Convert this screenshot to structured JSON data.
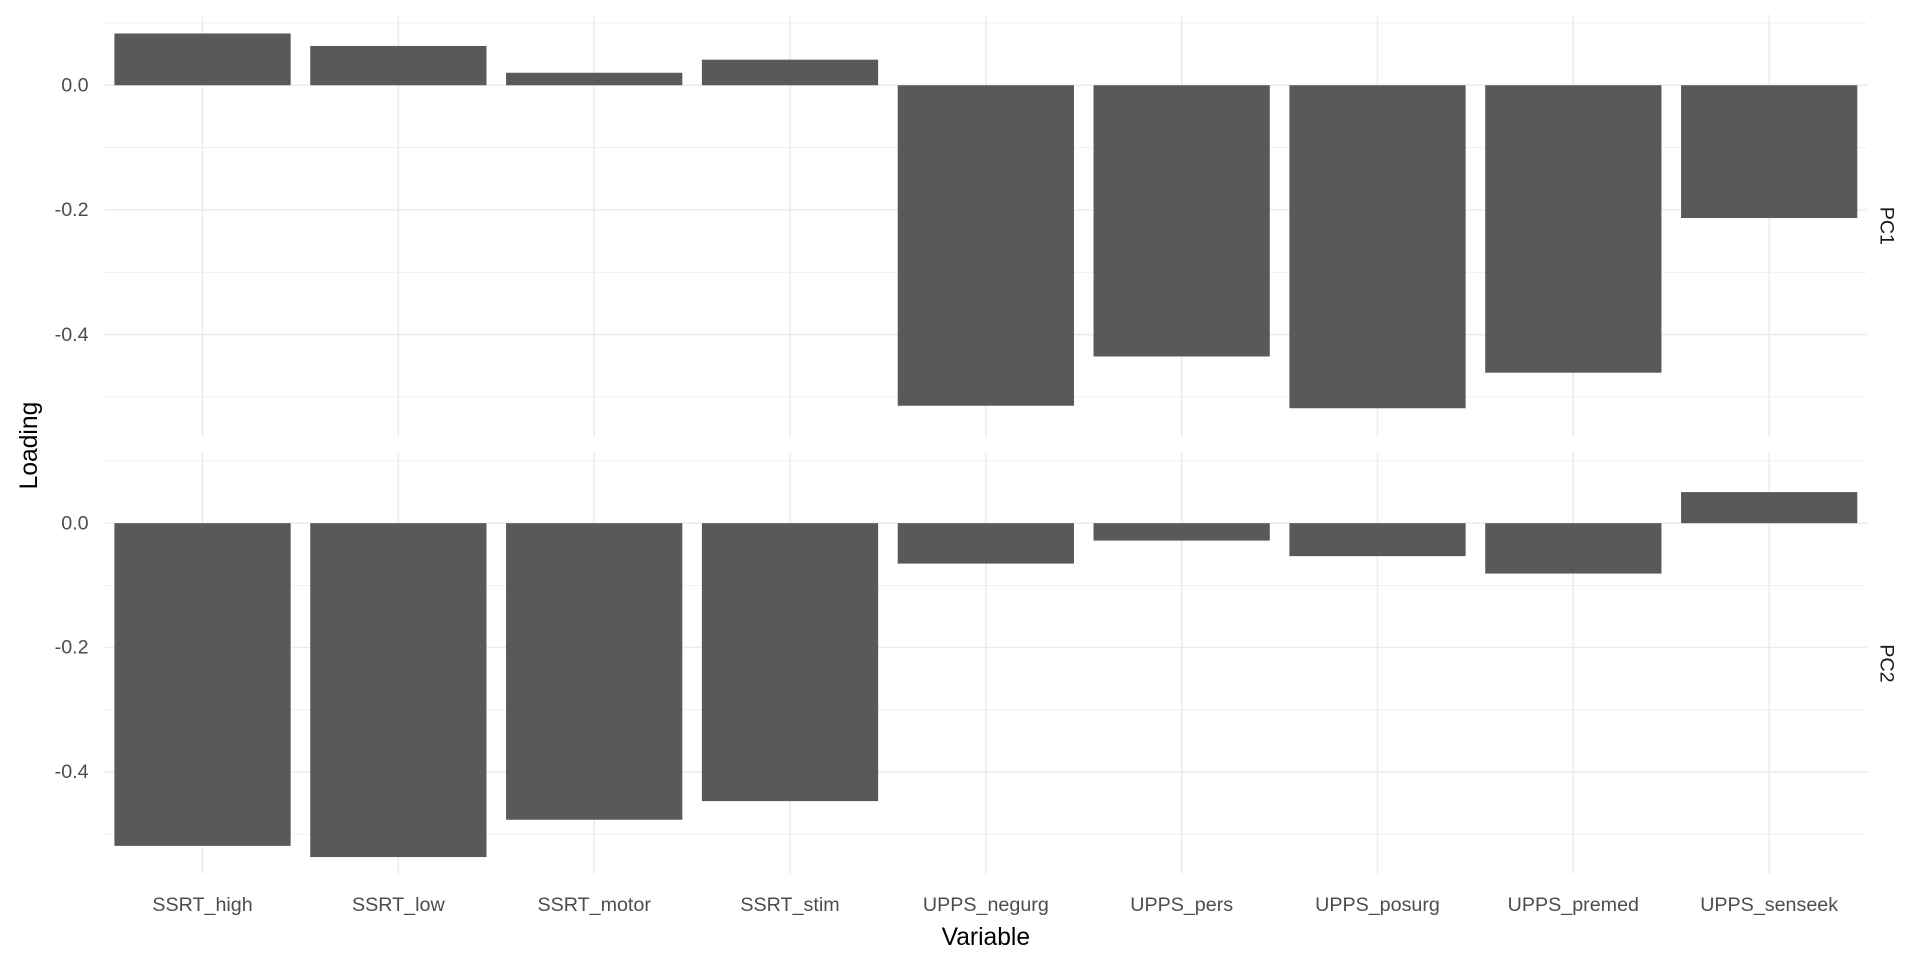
{
  "chart_data": {
    "type": "bar",
    "facets": [
      "PC1",
      "PC2"
    ],
    "categories": [
      "SSRT_high",
      "SSRT_low",
      "SSRT_motor",
      "SSRT_stim",
      "UPPS_negurg",
      "UPPS_pers",
      "UPPS_posurg",
      "UPPS_premed",
      "UPPS_senseek"
    ],
    "series": [
      {
        "name": "PC1",
        "values": [
          0.083,
          0.063,
          0.02,
          0.041,
          -0.514,
          -0.435,
          -0.518,
          -0.461,
          -0.213
        ]
      },
      {
        "name": "PC2",
        "values": [
          -0.519,
          -0.537,
          -0.477,
          -0.447,
          -0.065,
          -0.028,
          -0.053,
          -0.081,
          0.05
        ]
      }
    ],
    "xlabel": "Variable",
    "ylabel": "Loading",
    "yticks": [
      0.0,
      -0.2,
      -0.4
    ],
    "ytick_labels": [
      "0.0",
      "-0.2",
      "-0.4"
    ],
    "ylim": [
      -0.564,
      0.113
    ],
    "grid": true,
    "bar_color": "#595959",
    "grid_color": "#ebebeb"
  }
}
